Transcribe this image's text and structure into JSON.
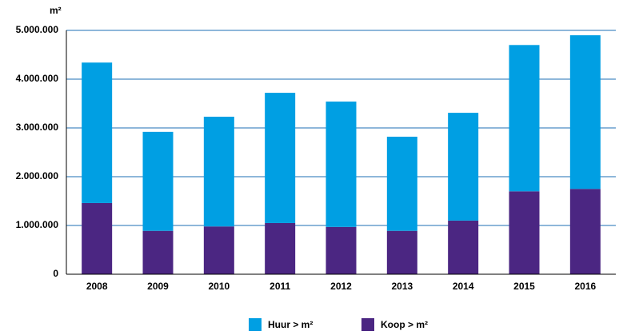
{
  "chart_data": {
    "type": "stacked_bar",
    "y_axis_label": "m²",
    "categories": [
      "2008",
      "2009",
      "2010",
      "2011",
      "2012",
      "2013",
      "2014",
      "2015",
      "2016"
    ],
    "series": [
      {
        "name": "Huur > m²",
        "color": "#009fe3",
        "values": [
          2880000,
          2030000,
          2250000,
          2670000,
          2570000,
          1930000,
          2210000,
          3000000,
          3150000
        ]
      },
      {
        "name": "Koop > m²",
        "color": "#4b2682",
        "values": [
          1460000,
          890000,
          980000,
          1050000,
          970000,
          890000,
          1100000,
          1700000,
          1750000
        ]
      }
    ],
    "ylim": [
      0,
      5000000
    ],
    "yticks": [
      0,
      {
        "value": 1000000,
        "label": "1.000.000"
      },
      {
        "value": 2000000,
        "label": "2.000.000"
      },
      {
        "value": 3000000,
        "label": "3.000.000"
      },
      {
        "value": 4000000,
        "label": "4.000.000"
      },
      {
        "value": 5000000,
        "label": "5.000.000"
      }
    ],
    "grid": true,
    "legend": "bottom"
  }
}
